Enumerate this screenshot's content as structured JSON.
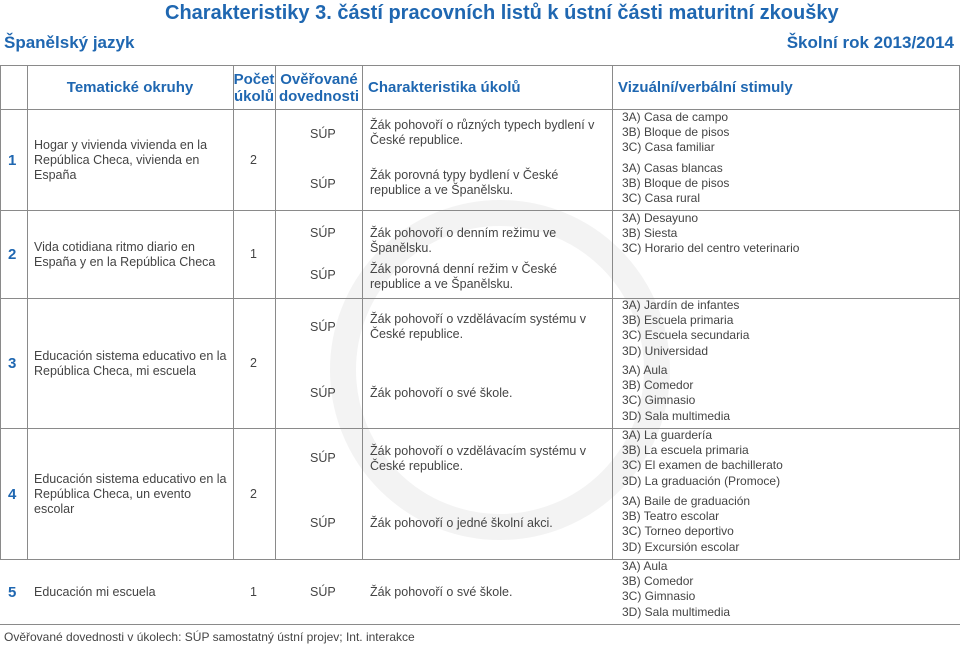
{
  "header": {
    "title": "Charakteristiky 3. částí pracovních listů k ústní části maturitní zkoušky",
    "subject": "Španělský jazyk",
    "school_year": "Školní rok 2013/2014"
  },
  "columns": {
    "topics": "Tematické okruhy",
    "count": "Počet úkolů",
    "skills": "Ověřované dovednosti",
    "tasks": "Charakteristika úkolů",
    "stimuli": "Vizuální/verbální stimuly"
  },
  "rows": [
    {
      "num": "1",
      "topic": "Hogar y vivienda vivienda en la República Checa, vivienda en España",
      "count": "2",
      "skill1": "SÚP",
      "skill2": "SÚP",
      "task1": "Žák pohovoří o různých typech bydlení v České republice.",
      "task2": "Žák porovná typy bydlení v České republice a ve Španělsku.",
      "stim1": [
        "3A) Casa de campo",
        "3B) Bloque de pisos",
        "3C) Casa familiar"
      ],
      "stim2": [
        "3A) Casas blancas",
        "3B) Bloque de pisos",
        "3C) Casa rural"
      ]
    },
    {
      "num": "2",
      "topic": "Vida cotidiana ritmo diario en España y en la República Checa",
      "count": "1",
      "skill1": "SÚP",
      "skill2": "SÚP",
      "task1": "Žák pohovoří o denním režimu ve Španělsku.",
      "task2": "Žák porovná denní režim v České republice a ve Španělsku.",
      "stim1": [
        "3A) Desayuno",
        "3B) Siesta",
        "3C) Horario del centro veterinario"
      ],
      "stim2": []
    },
    {
      "num": "3",
      "topic": "Educación sistema educativo en la República Checa, mi escuela",
      "count": "2",
      "skill1": "SÚP",
      "skill2": "SÚP",
      "task1": "Žák pohovoří o vzdělávacím systému v České republice.",
      "task2": "Žák pohovoří o své škole.",
      "stim1": [
        "3A) Jardín de infantes",
        "3B) Escuela primaria",
        "3C) Escuela secundaria",
        "3D) Universidad"
      ],
      "stim2": [
        "3A) Aula",
        "3B) Comedor",
        "3C) Gimnasio",
        "3D) Sala multimedia"
      ]
    },
    {
      "num": "4",
      "topic": "Educación sistema educativo en la República Checa, un evento escolar",
      "count": "2",
      "skill1": "SÚP",
      "skill2": "SÚP",
      "task1": "Žák pohovoří o vzdělávacím systému v České republice.",
      "task2": "Žák pohovoří o jedné školní akci.",
      "stim1": [
        "3A) La guardería",
        "3B) La escuela primaria",
        "3C) El examen de bachillerato",
        "3D) La graduación (Promoce)"
      ],
      "stim2": [
        "3A) Baile de graduación",
        "3B) Teatro escolar",
        "3C) Torneo deportivo",
        "3D) Excursión escolar"
      ]
    },
    {
      "num": "5",
      "topic": "Educación mi escuela",
      "count": "1",
      "skill1": "SÚP",
      "task1": "Žák pohovoří o své škole.",
      "stim1": [
        "3A) Aula",
        "3B) Comedor",
        "3C) Gimnasio",
        "3D) Sala multimedia"
      ]
    }
  ],
  "footer": "Ověřované dovednosti v úkolech: SÚP samostatný ústní projev; Int. interakce"
}
